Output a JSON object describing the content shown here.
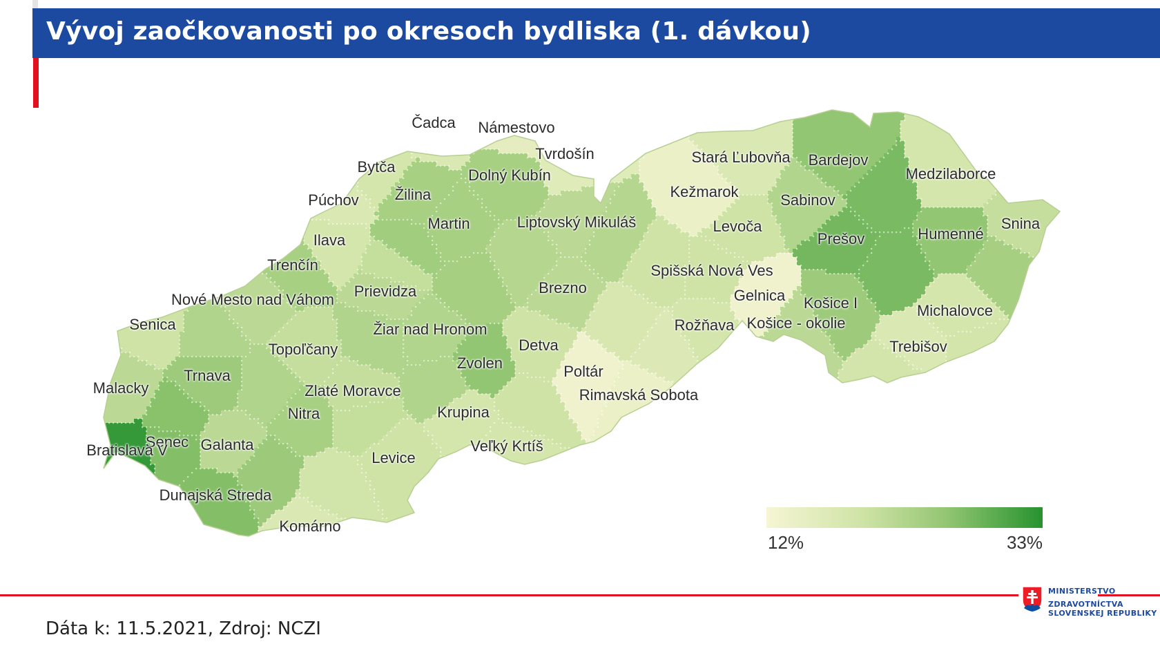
{
  "header": {
    "title": "Vývoj zaočkovanosti po okresoch bydliska (1. dávkou)"
  },
  "map": {
    "districts": [
      {
        "name": "Čadca",
        "level": 0.25
      },
      {
        "name": "Námestovo",
        "level": 0.15
      },
      {
        "name": "Tvrdošín",
        "level": 0.2
      },
      {
        "name": "Bytča",
        "level": 0.3
      },
      {
        "name": "Dolný Kubín",
        "level": 0.55
      },
      {
        "name": "Žilina",
        "level": 0.55
      },
      {
        "name": "Púchov",
        "level": 0.25
      },
      {
        "name": "Martin",
        "level": 0.55
      },
      {
        "name": "Liptovský Mikuláš",
        "level": 0.45
      },
      {
        "name": "Ilava",
        "level": 0.3
      },
      {
        "name": "Trenčín",
        "level": 0.55
      },
      {
        "name": "Prievidza",
        "level": 0.45
      },
      {
        "name": "Brezno",
        "level": 0.45
      },
      {
        "name": "Nové Mesto nad Váhom",
        "level": 0.45
      },
      {
        "name": "Senica",
        "level": 0.35
      },
      {
        "name": "Topoľčany",
        "level": 0.4
      },
      {
        "name": "Žiar nad Hronom",
        "level": 0.5
      },
      {
        "name": "Detva",
        "level": 0.35
      },
      {
        "name": "Zvolen",
        "level": 0.65
      },
      {
        "name": "Trnava",
        "level": 0.6
      },
      {
        "name": "Malacky",
        "level": 0.45
      },
      {
        "name": "Zlaté Moravce",
        "level": 0.4
      },
      {
        "name": "Nitra",
        "level": 0.55
      },
      {
        "name": "Krupina",
        "level": 0.3
      },
      {
        "name": "Poltár",
        "level": 0.05
      },
      {
        "name": "Rimavská Sobota",
        "level": 0.1
      },
      {
        "name": "Senec",
        "level": 0.7
      },
      {
        "name": "Galanta",
        "level": 0.45
      },
      {
        "name": "Bratislava V",
        "level": 0.95
      },
      {
        "name": "Levice",
        "level": 0.35
      },
      {
        "name": "Veľký Krtíš",
        "level": 0.3
      },
      {
        "name": "Dunajská Streda",
        "level": 0.7
      },
      {
        "name": "Komárno",
        "level": 0.25
      },
      {
        "name": "Stará Ľubovňa",
        "level": 0.25
      },
      {
        "name": "Bardejov",
        "level": 0.65
      },
      {
        "name": "Medzilaborce",
        "level": 0.3
      },
      {
        "name": "Kežmarok",
        "level": 0.1
      },
      {
        "name": "Sabinov",
        "level": 0.5
      },
      {
        "name": "Levoča",
        "level": 0.35
      },
      {
        "name": "Prešov",
        "level": 0.75
      },
      {
        "name": "Humenné",
        "level": 0.65
      },
      {
        "name": "Snina",
        "level": 0.4
      },
      {
        "name": "Spišská Nová Ves",
        "level": 0.35
      },
      {
        "name": "Gelnica",
        "level": 0.05
      },
      {
        "name": "Košice I",
        "level": 0.6
      },
      {
        "name": "Rožňava",
        "level": 0.3
      },
      {
        "name": "Košice - okolie",
        "level": 0.45
      },
      {
        "name": "Michalovce",
        "level": 0.3
      },
      {
        "name": "Trebišov",
        "level": 0.25
      }
    ]
  },
  "legend": {
    "min_label": "12%",
    "max_label": "33%"
  },
  "footer": {
    "source": "Dáta k: 11.5.2021, Zdroj: NCZI"
  },
  "ministry": {
    "line1": "MINISTERSTVO",
    "line2": "ZDRAVOTNÍCTVA",
    "line3": "SLOVENSKEJ REPUBLIKY"
  },
  "colors": {
    "header_bg": "#1c4aa0",
    "accent_red": "#e3101f",
    "scale_low": "#f6f5d4",
    "scale_high": "#27922f"
  }
}
